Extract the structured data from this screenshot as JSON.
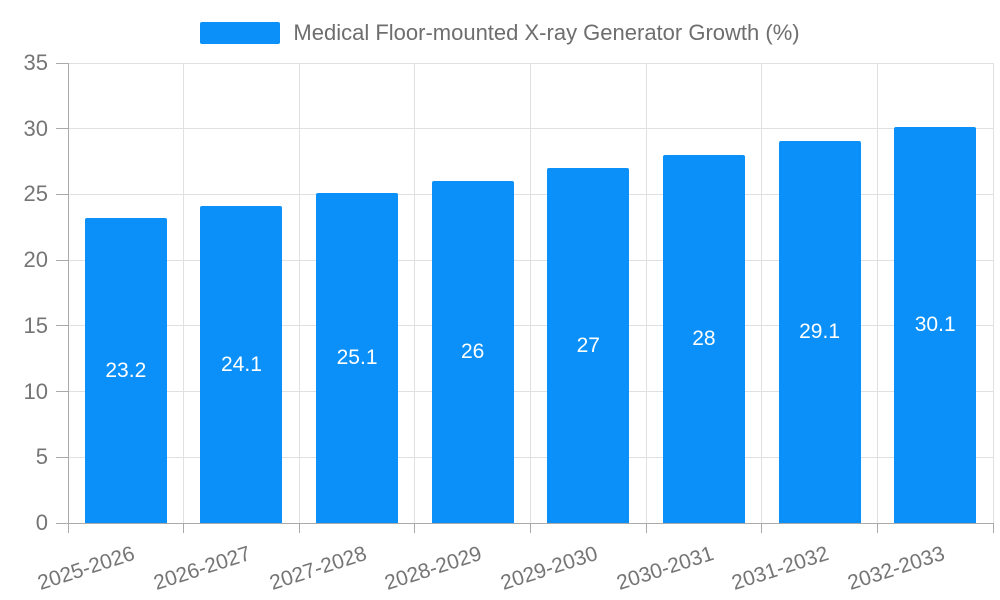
{
  "legend": {
    "label": "Medical Floor-mounted X-ray Generator Growth (%)"
  },
  "chart_data": {
    "type": "bar",
    "title": "Medical Floor-mounted X-ray Generator Growth (%)",
    "categories": [
      "2025-2026",
      "2026-2027",
      "2027-2028",
      "2028-2029",
      "2029-2030",
      "2030-2031",
      "2031-2032",
      "2032-2033"
    ],
    "values": [
      23.2,
      24.1,
      25.1,
      26,
      27,
      28,
      29.1,
      30.1
    ],
    "value_labels": [
      "23.2",
      "24.1",
      "25.1",
      "26",
      "27",
      "28",
      "29.1",
      "30.1"
    ],
    "xlabel": "",
    "ylabel": "",
    "ylim": [
      0,
      35
    ],
    "yticks": [
      0,
      5,
      10,
      15,
      20,
      25,
      30,
      35
    ],
    "grid": true,
    "legend_position": "top",
    "bar_color": "#0a90f8",
    "value_label_color": "#ffffff",
    "axis_label_color": "#757575",
    "grid_color": "#e0e0e0",
    "axis_line_color": "#aaaaaa",
    "x_label_rotation_deg": -18
  }
}
